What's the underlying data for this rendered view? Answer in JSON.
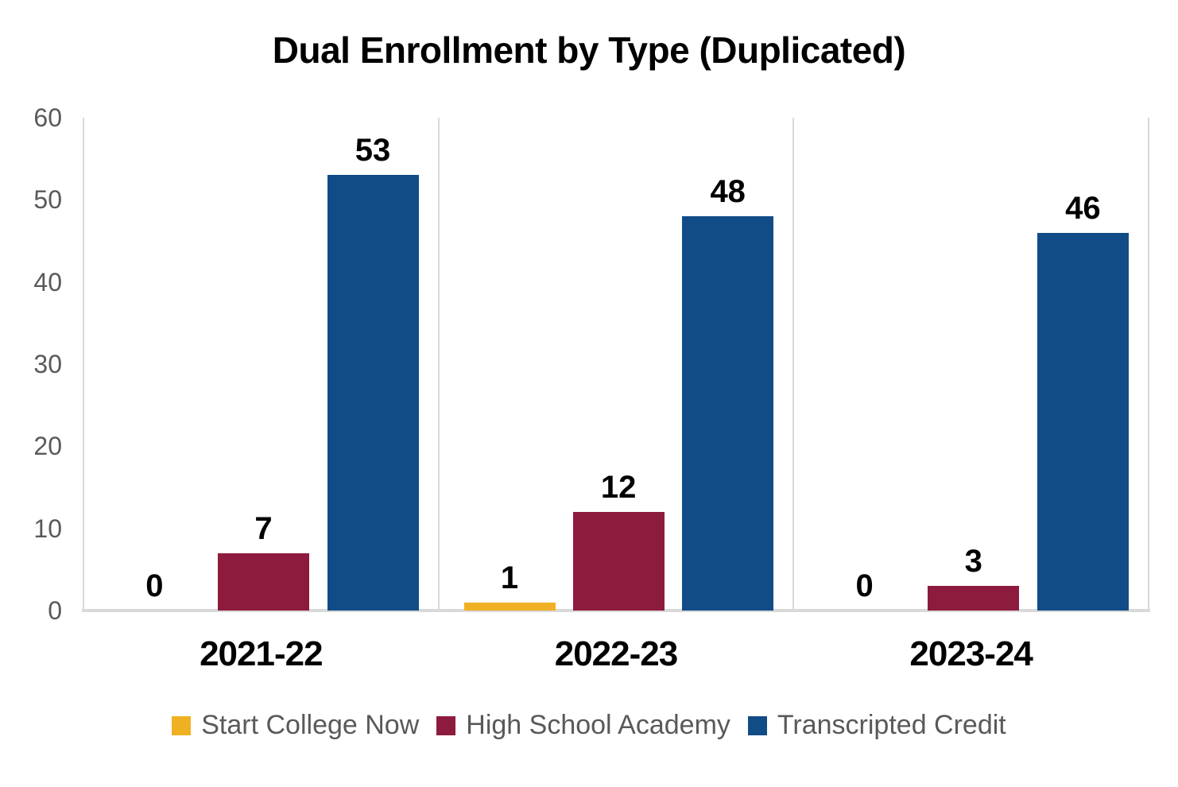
{
  "chart_data": {
    "type": "bar",
    "title": "Dual Enrollment by Type (Duplicated)",
    "categories": [
      "2021-22",
      "2022-23",
      "2023-24"
    ],
    "series": [
      {
        "name": "Start College Now",
        "color": "#EFB123",
        "values": [
          0,
          1,
          0
        ]
      },
      {
        "name": "High School Academy",
        "color": "#8D1B3E",
        "values": [
          7,
          12,
          3
        ]
      },
      {
        "name": "Transcripted Credit",
        "color": "#114C87",
        "values": [
          53,
          48,
          46
        ]
      }
    ],
    "ylim": [
      0,
      60
    ],
    "yticks": [
      0,
      10,
      20,
      30,
      40,
      50,
      60
    ],
    "data_labels": [
      [
        "0",
        "7",
        "53"
      ],
      [
        "1",
        "12",
        "48"
      ],
      [
        "0",
        "3",
        "46"
      ]
    ],
    "grid": "vertical-category-separators",
    "horizontal_gridlines": false,
    "legend_position": "bottom"
  },
  "colors": {
    "background": "#ffffff",
    "title_text": "#000000",
    "axis_tick_text": "#595959",
    "category_text": "#000000",
    "data_label_text": "#000000",
    "legend_text": "#595959",
    "axis_line": "#d9d9d9"
  }
}
